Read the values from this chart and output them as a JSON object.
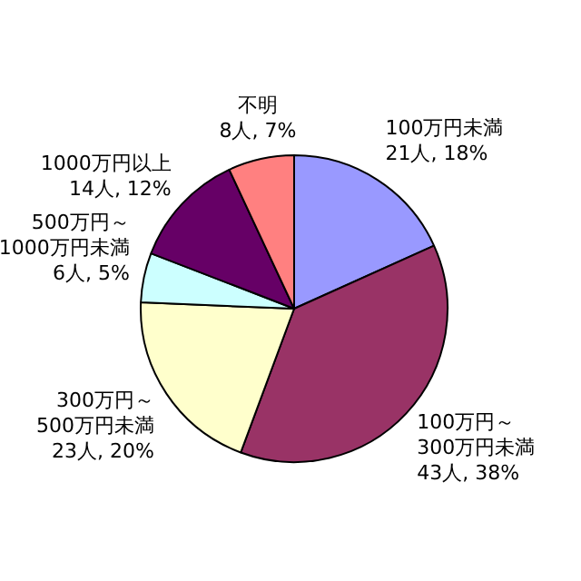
{
  "chart_data": {
    "type": "pie",
    "categories": [
      "100万円未満",
      "100万円～300万円未満",
      "300万円～500万円未満",
      "500万円～1000万円未満",
      "1000万円以上",
      "不明"
    ],
    "values": [
      21,
      43,
      23,
      6,
      14,
      8
    ],
    "value_labels": [
      "21人, 18%",
      "43人, 38%",
      "23人, 20%",
      "6人, 5%",
      "14人, 12%",
      "8人, 7%"
    ],
    "colors": [
      "#9999ff",
      "#993366",
      "#ffffcc",
      "#ccffff",
      "#660066",
      "#ff8080"
    ],
    "legend": false
  }
}
